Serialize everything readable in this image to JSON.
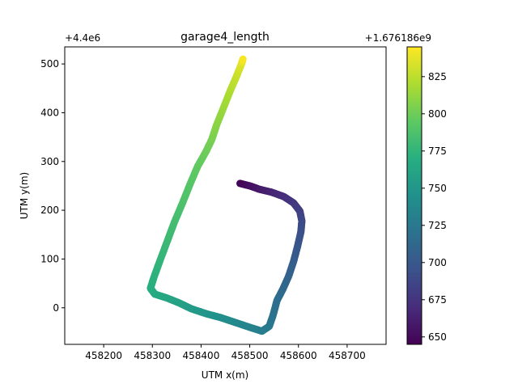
{
  "chart_data": {
    "type": "scatter",
    "title": "garage4_length",
    "xlabel": "UTM x(m)",
    "ylabel": "UTM y(m)",
    "x_offset_label": "+4.4e6",
    "colorbar_offset_label": "+1.676186e9",
    "xlim": [
      458120,
      458780
    ],
    "ylim": [
      -75,
      535
    ],
    "x_ticks": [
      458200,
      458300,
      458400,
      458500,
      458600,
      458700
    ],
    "y_ticks": [
      0,
      100,
      200,
      300,
      400,
      500
    ],
    "colorbar": {
      "colormap": "viridis",
      "range": [
        645,
        845
      ],
      "ticks": [
        650,
        675,
        700,
        725,
        750,
        775,
        800,
        825
      ]
    },
    "path": [
      {
        "x": 458480,
        "y": 255,
        "t": 646
      },
      {
        "x": 458500,
        "y": 250,
        "t": 652
      },
      {
        "x": 458520,
        "y": 243,
        "t": 658
      },
      {
        "x": 458545,
        "y": 237,
        "t": 664
      },
      {
        "x": 458570,
        "y": 228,
        "t": 670
      },
      {
        "x": 458590,
        "y": 215,
        "t": 676
      },
      {
        "x": 458603,
        "y": 198,
        "t": 682
      },
      {
        "x": 458607,
        "y": 178,
        "t": 688
      },
      {
        "x": 458605,
        "y": 155,
        "t": 693
      },
      {
        "x": 458598,
        "y": 125,
        "t": 698
      },
      {
        "x": 458590,
        "y": 95,
        "t": 703
      },
      {
        "x": 458580,
        "y": 65,
        "t": 708
      },
      {
        "x": 458568,
        "y": 38,
        "t": 712
      },
      {
        "x": 458556,
        "y": 15,
        "t": 716
      },
      {
        "x": 458548,
        "y": -15,
        "t": 720
      },
      {
        "x": 458540,
        "y": -38,
        "t": 724
      },
      {
        "x": 458525,
        "y": -48,
        "t": 728
      },
      {
        "x": 458500,
        "y": -40,
        "t": 733
      },
      {
        "x": 458470,
        "y": -30,
        "t": 738
      },
      {
        "x": 458440,
        "y": -20,
        "t": 743
      },
      {
        "x": 458410,
        "y": -12,
        "t": 748
      },
      {
        "x": 458380,
        "y": -2,
        "t": 753
      },
      {
        "x": 458355,
        "y": 10,
        "t": 758
      },
      {
        "x": 458330,
        "y": 20,
        "t": 762
      },
      {
        "x": 458305,
        "y": 28,
        "t": 766
      },
      {
        "x": 458296,
        "y": 40,
        "t": 769
      },
      {
        "x": 458303,
        "y": 62,
        "t": 772
      },
      {
        "x": 458315,
        "y": 95,
        "t": 775
      },
      {
        "x": 458330,
        "y": 135,
        "t": 779
      },
      {
        "x": 458345,
        "y": 175,
        "t": 783
      },
      {
        "x": 458362,
        "y": 215,
        "t": 787
      },
      {
        "x": 458378,
        "y": 255,
        "t": 791
      },
      {
        "x": 458393,
        "y": 290,
        "t": 795
      },
      {
        "x": 458410,
        "y": 320,
        "t": 799
      },
      {
        "x": 458422,
        "y": 345,
        "t": 803
      },
      {
        "x": 458432,
        "y": 375,
        "t": 808
      },
      {
        "x": 458446,
        "y": 410,
        "t": 814
      },
      {
        "x": 458460,
        "y": 445,
        "t": 820
      },
      {
        "x": 458473,
        "y": 475,
        "t": 827
      },
      {
        "x": 458483,
        "y": 500,
        "t": 835
      },
      {
        "x": 458486,
        "y": 510,
        "t": 843
      }
    ]
  }
}
